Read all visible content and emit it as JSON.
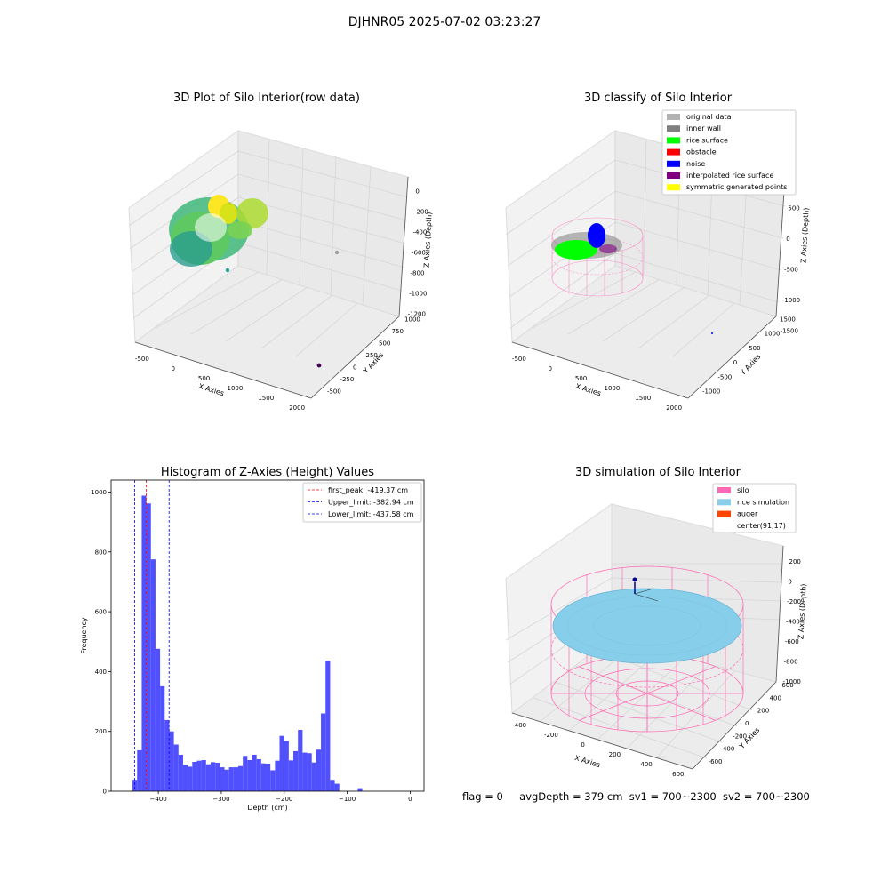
{
  "figure_title": "DJHNR05 2025-07-02 03:23:27",
  "status": {
    "flag": "flag = 0",
    "avg_depth": "avgDepth = 379 cm",
    "sv1": "sv1 = 700~2300",
    "sv2": "sv2 = 700~2300"
  },
  "colors": {
    "hist_bar": "#5050ff",
    "first_peak_line": "#ff0000",
    "limit_lines": "#0000ff",
    "pane": "#f2f2f2",
    "grid": "#d9d9d9",
    "silo": "#ff69b4",
    "rice_simulation": "#87ceeb",
    "auger": "#ff4500",
    "original_data": "#b3b3b3",
    "inner_wall": "#808080",
    "rice_surface": "#00ff00",
    "obstacle": "#ff0000",
    "noise": "#0000ff",
    "interpolated_rice_surface": "#800080",
    "symmetric_generated_points": "#ffff00"
  },
  "chart_data": [
    {
      "type": "scatter",
      "projection": "3d",
      "title": "3D Plot of Silo Interior(row data)",
      "xlabel": "X Axies",
      "ylabel": "Y Axies",
      "zlabel": "Z Axies (Depth)",
      "x_ticks": [
        "-500",
        "0",
        "500",
        "1000",
        "1500",
        "2000"
      ],
      "y_ticks": [
        "-500",
        "-250",
        "0",
        "250",
        "500",
        "750",
        "1000"
      ],
      "z_ticks": [
        "0",
        "-200",
        "-400",
        "-600",
        "-800",
        "-1000",
        "-1200"
      ],
      "colormap": "viridis",
      "grid": true
    },
    {
      "type": "scatter",
      "projection": "3d",
      "title": "3D classify of Silo Interior",
      "xlabel": "X Axies",
      "ylabel": "Y Axies",
      "zlabel": "Z Axies (Depth)",
      "x_ticks": [
        "-500",
        "0",
        "500",
        "1000",
        "1500",
        "2000"
      ],
      "y_ticks": [
        "-1000",
        "-500",
        "0",
        "500",
        "1000",
        "1500"
      ],
      "z_ticks": [
        "500",
        "0",
        "-500",
        "-1000",
        "-1500"
      ],
      "legend": [
        "original data",
        "inner wall",
        "rice surface",
        "obstacle",
        "noise",
        "interpolated rice surface",
        "symmetric generated points"
      ],
      "legend_position": "top-right",
      "grid": true
    },
    {
      "type": "bar",
      "title": "Histogram of Z-Axies (Height) Values",
      "xlabel": "Depth (cm)",
      "ylabel": "Frequency",
      "xlim": [
        -475,
        22
      ],
      "ylim": [
        0,
        1040
      ],
      "x_ticks": [
        -400,
        -300,
        -200,
        -100,
        0
      ],
      "y_ticks": [
        0,
        200,
        400,
        600,
        800,
        1000
      ],
      "bin_width": 7.3,
      "bin_edges_start": -441,
      "values": [
        38,
        137,
        988,
        962,
        775,
        476,
        351,
        238,
        200,
        156,
        122,
        88,
        82,
        98,
        102,
        104,
        90,
        97,
        95,
        80,
        72,
        80,
        80,
        84,
        118,
        104,
        122,
        107,
        93,
        92,
        70,
        102,
        185,
        168,
        103,
        134,
        205,
        129,
        127,
        96,
        139,
        260,
        436,
        38,
        25,
        0,
        0,
        0,
        0,
        10
      ],
      "vlines": [
        {
          "label": "first_peak: -419.37 cm",
          "x": -419.37,
          "color": "red"
        },
        {
          "label": "Upper_limit: -382.94 cm",
          "x": -382.94,
          "color": "blue"
        },
        {
          "label": "Lower_limit: -437.58 cm",
          "x": -437.58,
          "color": "blue"
        }
      ],
      "legend_position": "top-right",
      "grid": false
    },
    {
      "type": "scatter",
      "projection": "3d",
      "title": "3D simulation of Silo Interior",
      "xlabel": "X Axies",
      "ylabel": "Y Axies",
      "zlabel": "Z Axies (Depth)",
      "x_ticks": [
        "-400",
        "-200",
        "0",
        "200",
        "400",
        "600"
      ],
      "y_ticks": [
        "-600",
        "-400",
        "-200",
        "0",
        "200",
        "400",
        "600"
      ],
      "z_ticks": [
        "200",
        "0",
        "-200",
        "-400",
        "-600",
        "-800",
        "-1000"
      ],
      "legend": [
        "silo",
        "rice simulation",
        "auger",
        "center(91,17)"
      ],
      "legend_position": "top-right",
      "grid": true
    }
  ]
}
